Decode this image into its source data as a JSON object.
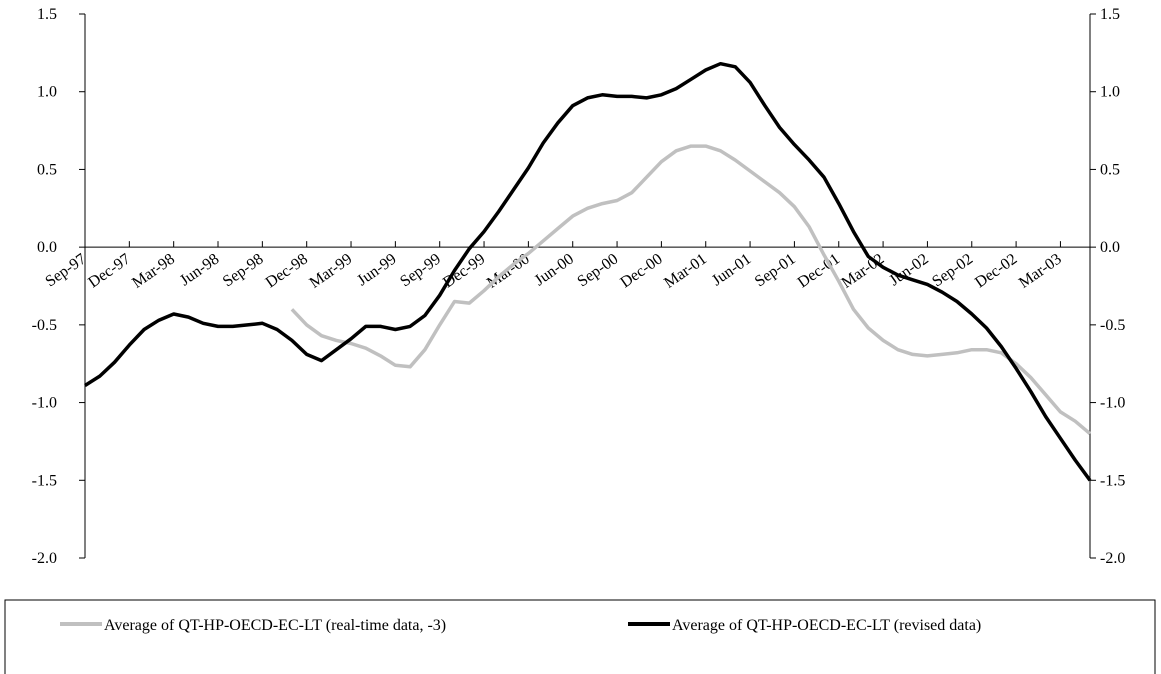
{
  "chart_data": {
    "type": "line",
    "categories": [
      "Sep-97",
      null,
      null,
      "Dec-97",
      null,
      null,
      "Mar-98",
      null,
      null,
      "Jun-98",
      null,
      null,
      "Sep-98",
      null,
      null,
      "Dec-98",
      null,
      null,
      "Mar-99",
      null,
      null,
      "Jun-99",
      null,
      null,
      "Sep-99",
      null,
      null,
      "Dec-99",
      null,
      null,
      "Mar-00",
      null,
      null,
      "Jun-00",
      null,
      null,
      "Sep-00",
      null,
      null,
      "Dec-00",
      null,
      null,
      "Mar-01",
      null,
      null,
      "Jun-01",
      null,
      null,
      "Sep-01",
      null,
      null,
      "Dec-01",
      null,
      null,
      "Mar-02",
      null,
      null,
      "Jun-02",
      null,
      null,
      "Sep-02",
      null,
      null,
      "Dec-02",
      null,
      null,
      "Mar-03",
      null,
      null
    ],
    "series": [
      {
        "name": "Average of QT-HP-OECD-EC-LT (real-time data, -3)",
        "color": "#c0c0c0",
        "values": [
          null,
          null,
          null,
          null,
          null,
          null,
          null,
          null,
          null,
          null,
          null,
          null,
          null,
          null,
          -0.4,
          -0.5,
          -0.57,
          -0.6,
          -0.62,
          -0.65,
          -0.7,
          -0.76,
          -0.77,
          -0.66,
          -0.5,
          -0.35,
          -0.36,
          -0.28,
          -0.19,
          -0.11,
          -0.04,
          0.04,
          0.12,
          0.2,
          0.25,
          0.28,
          0.3,
          0.35,
          0.45,
          0.55,
          0.62,
          0.65,
          0.65,
          0.62,
          0.56,
          0.49,
          0.42,
          0.35,
          0.26,
          0.13,
          -0.05,
          -0.22,
          -0.4,
          -0.52,
          -0.6,
          -0.66,
          -0.69,
          -0.7,
          -0.69,
          -0.68,
          -0.66,
          -0.66,
          -0.68,
          -0.75,
          -0.84,
          -0.95,
          -1.06,
          -1.12,
          -1.2
        ]
      },
      {
        "name": "Average of QT-HP-OECD-EC-LT (revised data)",
        "color": "#000000",
        "values": [
          -0.89,
          -0.83,
          -0.74,
          -0.63,
          -0.53,
          -0.47,
          -0.43,
          -0.45,
          -0.49,
          -0.51,
          -0.51,
          -0.5,
          -0.49,
          -0.53,
          -0.6,
          -0.69,
          -0.73,
          -0.66,
          -0.59,
          -0.51,
          -0.51,
          -0.53,
          -0.51,
          -0.44,
          -0.31,
          -0.15,
          -0.01,
          0.1,
          0.23,
          0.37,
          0.51,
          0.67,
          0.8,
          0.91,
          0.96,
          0.98,
          0.97,
          0.97,
          0.96,
          0.98,
          1.02,
          1.08,
          1.14,
          1.18,
          1.16,
          1.06,
          0.91,
          0.77,
          0.66,
          0.56,
          0.45,
          0.28,
          0.1,
          -0.06,
          -0.13,
          -0.18,
          -0.21,
          -0.24,
          -0.29,
          -0.35,
          -0.43,
          -0.52,
          -0.64,
          -0.78,
          -0.93,
          -1.09,
          -1.23,
          -1.37,
          -1.5
        ]
      }
    ],
    "ylim": [
      -2.0,
      1.5
    ],
    "yticks": [
      {
        "value": -2.0,
        "label": "-2.0"
      },
      {
        "value": -1.5,
        "label": "-1.5"
      },
      {
        "value": -1.0,
        "label": "-1.0"
      },
      {
        "value": -0.5,
        "label": "-0.5"
      },
      {
        "value": 0.0,
        "label": "0.0"
      },
      {
        "value": 0.5,
        "label": "0.5"
      },
      {
        "value": 1.0,
        "label": "1.0"
      },
      {
        "value": 1.5,
        "label": "1.5"
      }
    ],
    "y2lim": [
      -2.0,
      1.5
    ],
    "y2ticks": [
      {
        "value": -2.0,
        "label": "-2.0"
      },
      {
        "value": -1.5,
        "label": "-1.5"
      },
      {
        "value": -1.0,
        "label": "-1.0"
      },
      {
        "value": -0.5,
        "label": "-0.5"
      },
      {
        "value": 0.0,
        "label": "0.0"
      },
      {
        "value": 0.5,
        "label": "0.5"
      },
      {
        "value": 1.0,
        "label": "1.0"
      },
      {
        "value": 1.5,
        "label": "1.5"
      }
    ],
    "legend": "bottom",
    "grid": false
  }
}
